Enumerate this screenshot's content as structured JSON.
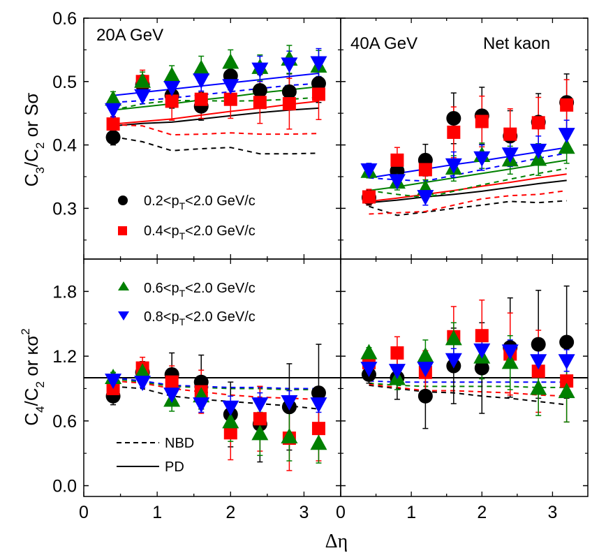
{
  "chart_data": {
    "type": "scatter",
    "title": "",
    "xlabel": "Δη",
    "x": [
      0.4,
      0.8,
      1.2,
      1.6,
      2.0,
      2.4,
      2.8,
      3.2
    ],
    "xlim": [
      0,
      3.5
    ],
    "x_ticks": [
      "0",
      "1",
      "2",
      "3"
    ],
    "rows": [
      {
        "ylabel": "C3/C2 or Sσ",
        "ylabel_parts": {
          "c_main": "C",
          "sub1": "3",
          "slash": "/C",
          "sub2": "2",
          "rest": " or Sσ"
        },
        "ylim": [
          0.22,
          0.6
        ],
        "y_ticks": [
          "0.3",
          "0.4",
          "0.5",
          "0.6"
        ],
        "y_tick_values": [
          0.3,
          0.4,
          0.5,
          0.6
        ],
        "minor_ticks": [
          0.25,
          0.35,
          0.45,
          0.55
        ],
        "reference_line": null
      },
      {
        "ylabel": "C4/C2 or κσ²",
        "ylabel_parts": {
          "c_main": "C",
          "sub1": "4",
          "slash": "/C",
          "sub2": "2",
          "rest": " or κσ",
          "sup": "2"
        },
        "ylim": [
          -0.1,
          2.1
        ],
        "y_ticks": [
          "0.0",
          "0.6",
          "1.2",
          "1.8"
        ],
        "y_tick_values": [
          0.0,
          0.6,
          1.2,
          1.8
        ],
        "minor_ticks": [
          0.3,
          0.9,
          1.5
        ],
        "reference_line": 1.0
      }
    ],
    "columns": [
      {
        "label": "20A GeV"
      },
      {
        "label": "40A GeV",
        "extra_label": "Net kaon"
      }
    ],
    "series_styles": [
      {
        "name": "0.2<pT<2.0 GeV/c",
        "legend_prefix": "0.2<p",
        "legend_sub": "T",
        "legend_suffix": "<2.0 GeV/c",
        "color": "#000000",
        "marker": "circle"
      },
      {
        "name": "0.4<pT<2.0 GeV/c",
        "legend_prefix": "0.4<p",
        "legend_sub": "T",
        "legend_suffix": "<2.0 GeV/c",
        "color": "#ff0000",
        "marker": "square"
      },
      {
        "name": "0.6<pT<2.0 GeV/c",
        "legend_prefix": "0.6<p",
        "legend_sub": "T",
        "legend_suffix": "<2.0 GeV/c",
        "color": "#008000",
        "marker": "triangle-up"
      },
      {
        "name": "0.8<pT<2.0 GeV/c",
        "legend_prefix": "0.8<p",
        "legend_sub": "T",
        "legend_suffix": "<2.0 GeV/c",
        "color": "#0000ff",
        "marker": "triangle-down"
      }
    ],
    "line_legend": [
      {
        "name": "NBD",
        "style": "dashed"
      },
      {
        "name": "PD",
        "style": "solid"
      }
    ],
    "panels": [
      {
        "row": 0,
        "col": 0,
        "series": [
          {
            "name": "0.2<pT<2.0 GeV/c",
            "values": [
              0.412,
              0.495,
              0.478,
              0.461,
              0.509,
              0.486,
              0.484,
              0.497
            ],
            "err": [
              0.012,
              0.015,
              0.02,
              0.022,
              0.022,
              0.025,
              0.028,
              0.03
            ]
          },
          {
            "name": "0.4<pT<2.0 GeV/c",
            "values": [
              0.433,
              0.5,
              0.469,
              0.472,
              0.472,
              0.467,
              0.465,
              0.48
            ],
            "err": [
              0.012,
              0.018,
              0.03,
              0.03,
              0.03,
              0.033,
              0.04,
              0.04
            ]
          },
          {
            "name": "0.6<pT<2.0 GeV/c",
            "values": [
              0.472,
              0.5,
              0.509,
              0.52,
              0.53,
              0.522,
              0.535,
              0.524
            ],
            "err": [
              0.012,
              0.015,
              0.016,
              0.02,
              0.02,
              0.02,
              0.022,
              0.025
            ]
          },
          {
            "name": "0.8<pT<2.0 GeV/c",
            "values": [
              0.456,
              0.478,
              0.491,
              0.503,
              0.494,
              0.52,
              0.528,
              0.53
            ],
            "err": [
              0.012,
              0.013,
              0.016,
              0.018,
              0.02,
              0.02,
              0.02,
              0.022
            ]
          }
        ],
        "model_lines": [
          {
            "series": "0.2<pT<2.0 GeV/c",
            "model": "NBD",
            "values": [
              0.413,
              0.405,
              0.391,
              0.394,
              0.396,
              0.386,
              0.386,
              0.387
            ]
          },
          {
            "series": "0.2<pT<2.0 GeV/c",
            "model": "PD",
            "values": [
              0.43,
              0.434,
              0.436,
              0.441,
              0.446,
              0.451,
              0.455,
              0.458
            ]
          },
          {
            "series": "0.4<pT<2.0 GeV/c",
            "model": "NBD",
            "values": [
              0.432,
              0.43,
              0.416,
              0.417,
              0.419,
              0.417,
              0.417,
              0.418
            ]
          },
          {
            "series": "0.4<pT<2.0 GeV/c",
            "model": "PD",
            "values": [
              0.433,
              0.437,
              0.441,
              0.447,
              0.453,
              0.458,
              0.464,
              0.469
            ]
          },
          {
            "series": "0.6<pT<2.0 GeV/c",
            "model": "NBD",
            "values": [
              0.455,
              0.465,
              0.47,
              0.47,
              0.469,
              0.47,
              0.472,
              0.475
            ]
          },
          {
            "series": "0.6<pT<2.0 GeV/c",
            "model": "PD",
            "values": [
              0.455,
              0.46,
              0.465,
              0.471,
              0.476,
              0.482,
              0.487,
              0.492
            ]
          },
          {
            "series": "0.8<pT<2.0 GeV/c",
            "model": "NBD",
            "values": [
              0.467,
              0.47,
              0.474,
              0.479,
              0.484,
              0.489,
              0.494,
              0.497
            ]
          },
          {
            "series": "0.8<pT<2.0 GeV/c",
            "model": "PD",
            "values": [
              0.478,
              0.483,
              0.488,
              0.493,
              0.498,
              0.503,
              0.508,
              0.513
            ]
          }
        ]
      },
      {
        "row": 0,
        "col": 1,
        "series": [
          {
            "name": "0.2<pT<2.0 GeV/c",
            "values": [
              0.317,
              0.359,
              0.376,
              0.442,
              0.446,
              0.414,
              0.436,
              0.467
            ],
            "err": [
              0.012,
              0.02,
              0.025,
              0.04,
              0.045,
              0.04,
              0.045,
              0.045
            ]
          },
          {
            "name": "0.4<pT<2.0 GeV/c",
            "values": [
              0.318,
              0.376,
              0.361,
              0.42,
              0.437,
              0.417,
              0.435,
              0.463
            ],
            "err": [
              0.012,
              0.02,
              0.025,
              0.04,
              0.04,
              0.04,
              0.04,
              0.04
            ]
          },
          {
            "name": "0.6<pT<2.0 GeV/c",
            "values": [
              0.358,
              0.341,
              0.331,
              0.363,
              0.383,
              0.376,
              0.377,
              0.396
            ],
            "err": [
              0.01,
              0.012,
              0.014,
              0.02,
              0.02,
              0.022,
              0.025,
              0.025
            ]
          },
          {
            "name": "0.8<pT<2.0 GeV/c",
            "values": [
              0.361,
              0.344,
              0.319,
              0.369,
              0.38,
              0.386,
              0.392,
              0.417
            ],
            "err": [
              0.01,
              0.012,
              0.014,
              0.02,
              0.02,
              0.02,
              0.022,
              0.022
            ]
          }
        ],
        "model_lines": [
          {
            "series": "0.2<pT<2.0 GeV/c",
            "model": "NBD",
            "values": [
              0.303,
              0.289,
              0.294,
              0.3,
              0.305,
              0.311,
              0.309,
              0.312
            ]
          },
          {
            "series": "0.2<pT<2.0 GeV/c",
            "model": "PD",
            "values": [
              0.309,
              0.313,
              0.318,
              0.322,
              0.327,
              0.333,
              0.339,
              0.344
            ]
          },
          {
            "series": "0.4<pT<2.0 GeV/c",
            "model": "NBD",
            "values": [
              0.291,
              0.293,
              0.295,
              0.305,
              0.315,
              0.32,
              0.322,
              0.328
            ]
          },
          {
            "series": "0.4<pT<2.0 GeV/c",
            "model": "PD",
            "values": [
              0.311,
              0.316,
              0.322,
              0.328,
              0.335,
              0.341,
              0.348,
              0.354
            ]
          },
          {
            "series": "0.6<pT<2.0 GeV/c",
            "model": "NBD",
            "values": [
              0.328,
              0.322,
              0.317,
              0.327,
              0.337,
              0.346,
              0.355,
              0.363
            ]
          },
          {
            "series": "0.6<pT<2.0 GeV/c",
            "model": "PD",
            "values": [
              0.328,
              0.334,
              0.341,
              0.348,
              0.355,
              0.362,
              0.369,
              0.376
            ]
          },
          {
            "series": "0.8<pT<2.0 GeV/c",
            "model": "NBD",
            "values": [
              0.348,
              0.345,
              0.343,
              0.352,
              0.361,
              0.37,
              0.379,
              0.387
            ]
          },
          {
            "series": "0.8<pT<2.0 GeV/c",
            "model": "PD",
            "values": [
              0.348,
              0.355,
              0.362,
              0.369,
              0.375,
              0.382,
              0.389,
              0.396
            ]
          }
        ]
      },
      {
        "row": 1,
        "col": 0,
        "series": [
          {
            "name": "0.2<pT<2.0 GeV/c",
            "values": [
              0.83,
              1.05,
              1.03,
              0.96,
              0.66,
              0.57,
              0.73,
              0.86
            ],
            "err": [
              0.08,
              0.1,
              0.2,
              0.25,
              0.3,
              0.35,
              0.4,
              0.45
            ]
          },
          {
            "name": "0.4<pT<2.0 GeV/c",
            "values": [
              0.9,
              1.09,
              0.96,
              0.87,
              0.49,
              0.62,
              0.44,
              0.53
            ],
            "err": [
              0.06,
              0.1,
              0.15,
              0.2,
              0.25,
              0.3,
              0.3,
              0.3
            ]
          },
          {
            "name": "0.6<pT<2.0 GeV/c",
            "values": [
              1.0,
              1.05,
              0.79,
              0.83,
              0.59,
              0.48,
              0.45,
              0.39
            ],
            "err": [
              0.05,
              0.08,
              0.1,
              0.12,
              0.18,
              0.2,
              0.22,
              0.18
            ]
          },
          {
            "name": "0.8<pT<2.0 GeV/c",
            "values": [
              0.98,
              0.96,
              0.85,
              0.76,
              0.73,
              0.76,
              0.78,
              0.76
            ],
            "err": [
              0.04,
              0.05,
              0.06,
              0.08,
              0.1,
              0.1,
              0.1,
              0.08
            ]
          }
        ],
        "model_lines": [
          {
            "series": "0.2<pT<2.0 GeV/c",
            "model": "NBD",
            "values": [
              0.92,
              0.9,
              0.83,
              0.8,
              0.78,
              0.76,
              0.74,
              0.71
            ]
          },
          {
            "series": "0.4<pT<2.0 GeV/c",
            "model": "NBD",
            "values": [
              0.97,
              0.95,
              0.9,
              0.87,
              0.84,
              0.82,
              0.81,
              0.8
            ]
          },
          {
            "series": "0.6<pT<2.0 GeV/c",
            "model": "NBD",
            "values": [
              0.99,
              0.96,
              0.92,
              0.91,
              0.9,
              0.9,
              0.89,
              0.89
            ]
          },
          {
            "series": "0.8<pT<2.0 GeV/c",
            "model": "NBD",
            "values": [
              1.0,
              0.97,
              0.93,
              0.92,
              0.91,
              0.91,
              0.9,
              0.9
            ]
          }
        ]
      },
      {
        "row": 1,
        "col": 1,
        "series": [
          {
            "name": "0.2<pT<2.0 GeV/c",
            "values": [
              1.03,
              1.0,
              0.83,
              1.11,
              1.09,
              1.28,
              1.31,
              1.33
            ],
            "err": [
              0.08,
              0.2,
              0.3,
              0.35,
              0.42,
              0.46,
              0.5,
              0.52
            ]
          },
          {
            "name": "0.4<pT<2.0 GeV/c",
            "values": [
              1.14,
              1.23,
              1.05,
              1.38,
              1.39,
              1.22,
              1.06,
              0.97
            ],
            "err": [
              0.08,
              0.15,
              0.2,
              0.28,
              0.33,
              0.38,
              0.38,
              0.38
            ]
          },
          {
            "name": "0.6<pT<2.0 GeV/c",
            "values": [
              1.23,
              0.99,
              1.2,
              1.36,
              1.19,
              1.14,
              0.9,
              0.87
            ],
            "err": [
              0.05,
              0.1,
              0.15,
              0.15,
              0.2,
              0.25,
              0.25,
              0.28
            ]
          },
          {
            "name": "0.8<pT<2.0 GeV/c",
            "values": [
              1.09,
              1.07,
              1.09,
              1.17,
              1.26,
              1.25,
              1.16,
              1.16
            ],
            "err": [
              0.04,
              0.05,
              0.07,
              0.1,
              0.1,
              0.1,
              0.1,
              0.1
            ]
          }
        ],
        "model_lines": [
          {
            "series": "0.2<pT<2.0 GeV/c",
            "model": "NBD",
            "values": [
              0.93,
              0.9,
              0.87,
              0.86,
              0.83,
              0.81,
              0.78,
              0.75
            ]
          },
          {
            "series": "0.4<pT<2.0 GeV/c",
            "model": "NBD",
            "values": [
              0.94,
              0.91,
              0.88,
              0.88,
              0.87,
              0.86,
              0.84,
              0.83
            ]
          },
          {
            "series": "0.6<pT<2.0 GeV/c",
            "model": "NBD",
            "values": [
              0.95,
              0.93,
              0.92,
              0.92,
              0.92,
              0.92,
              0.91,
              0.91
            ]
          },
          {
            "series": "0.8<pT<2.0 GeV/c",
            "model": "NBD",
            "values": [
              0.97,
              0.96,
              0.96,
              0.96,
              0.96,
              0.96,
              0.96,
              0.96
            ]
          }
        ]
      }
    ]
  }
}
